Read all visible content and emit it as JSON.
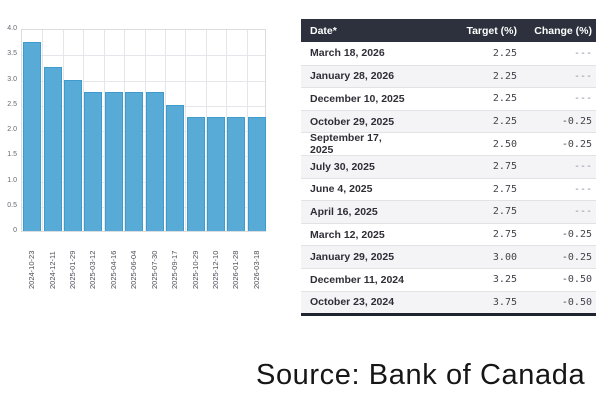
{
  "chart_data": {
    "type": "bar",
    "title": "",
    "xlabel": "",
    "ylabel": "",
    "categories": [
      "2024-10-23",
      "2024-12-11",
      "2025-01-29",
      "2025-03-12",
      "2025-04-16",
      "2025-06-04",
      "2025-07-30",
      "2025-09-17",
      "2025-10-29",
      "2025-12-10",
      "2026-01-28",
      "2026-03-18"
    ],
    "values": [
      3.75,
      3.25,
      3.0,
      2.75,
      2.75,
      2.75,
      2.75,
      2.5,
      2.25,
      2.25,
      2.25,
      2.25
    ],
    "ylim": [
      0,
      4.0
    ],
    "ytick_labels": [
      "4.0",
      "3.5",
      "3.0",
      "2.5",
      "2.0",
      "1.5",
      "1.0",
      "0.5",
      "0"
    ],
    "grid": true,
    "legend_position": "none",
    "bar_color": "#57abd6",
    "bar_edge_color": "#3e9bcc"
  },
  "table": {
    "headers": [
      "Date*",
      "Target (%)",
      "Change (%)"
    ],
    "rows": [
      [
        "March 18, 2026",
        "2.25",
        "---"
      ],
      [
        "January 28, 2026",
        "2.25",
        "---"
      ],
      [
        "December 10, 2025",
        "2.25",
        "---"
      ],
      [
        "October 29, 2025",
        "2.25",
        "-0.25"
      ],
      [
        "September 17, 2025",
        "2.50",
        "-0.25"
      ],
      [
        "July 30, 2025",
        "2.75",
        "---"
      ],
      [
        "June 4, 2025",
        "2.75",
        "---"
      ],
      [
        "April 16, 2025",
        "2.75",
        "---"
      ],
      [
        "March 12, 2025",
        "2.75",
        "-0.25"
      ],
      [
        "January 29, 2025",
        "3.00",
        "-0.25"
      ],
      [
        "December 11, 2024",
        "3.25",
        "-0.50"
      ],
      [
        "October 23, 2024",
        "3.75",
        "-0.50"
      ]
    ]
  },
  "source_note": "Source: Bank of Canada",
  "colors": {
    "table_header_bg": "#2c313d",
    "table_header_text": "#ffffff",
    "zebra_row": "#f4f4f7",
    "bar": "#57abd6"
  }
}
